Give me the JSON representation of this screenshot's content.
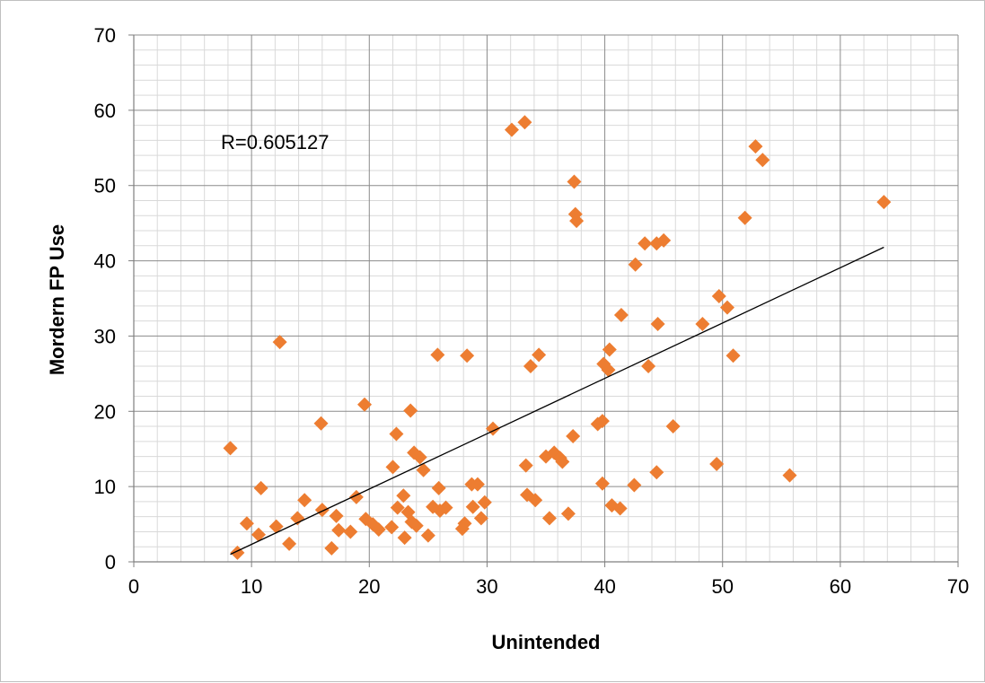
{
  "chart_data": {
    "type": "scatter",
    "title": "",
    "xlabel": "Unintended",
    "ylabel": "Mordern FP Use",
    "xlim": [
      0,
      70
    ],
    "ylim": [
      0,
      70
    ],
    "xticks": [
      "0",
      "10",
      "20",
      "30",
      "40",
      "50",
      "60",
      "70"
    ],
    "yticks": [
      "0",
      "10",
      "20",
      "30",
      "40",
      "50",
      "60",
      "70"
    ],
    "grid": true,
    "legend": "none",
    "annotation": "R=0.605127",
    "marker_color": "#ED7D31",
    "trendline": {
      "x": [
        8.2,
        63.7
      ],
      "y": [
        1.0,
        41.8
      ],
      "color": "#000000"
    },
    "points": [
      {
        "x": 8.2,
        "y": 15.1
      },
      {
        "x": 8.8,
        "y": 1.2
      },
      {
        "x": 9.6,
        "y": 5.1
      },
      {
        "x": 10.6,
        "y": 3.6
      },
      {
        "x": 10.8,
        "y": 9.8
      },
      {
        "x": 12.1,
        "y": 4.7
      },
      {
        "x": 12.4,
        "y": 29.2
      },
      {
        "x": 13.2,
        "y": 2.4
      },
      {
        "x": 13.9,
        "y": 5.8
      },
      {
        "x": 14.5,
        "y": 8.2
      },
      {
        "x": 15.9,
        "y": 18.4
      },
      {
        "x": 16.0,
        "y": 6.9
      },
      {
        "x": 16.8,
        "y": 1.8
      },
      {
        "x": 17.2,
        "y": 6.1
      },
      {
        "x": 17.4,
        "y": 4.2
      },
      {
        "x": 18.4,
        "y": 4.0
      },
      {
        "x": 18.9,
        "y": 8.6
      },
      {
        "x": 19.6,
        "y": 20.9
      },
      {
        "x": 19.7,
        "y": 5.7
      },
      {
        "x": 20.3,
        "y": 5.0
      },
      {
        "x": 20.8,
        "y": 4.3
      },
      {
        "x": 21.9,
        "y": 4.6
      },
      {
        "x": 22.0,
        "y": 12.6
      },
      {
        "x": 22.3,
        "y": 17.0
      },
      {
        "x": 22.4,
        "y": 7.2
      },
      {
        "x": 22.9,
        "y": 8.8
      },
      {
        "x": 23.0,
        "y": 3.2
      },
      {
        "x": 23.3,
        "y": 6.6
      },
      {
        "x": 23.5,
        "y": 20.1
      },
      {
        "x": 23.6,
        "y": 5.3
      },
      {
        "x": 23.8,
        "y": 14.5
      },
      {
        "x": 24.0,
        "y": 4.8
      },
      {
        "x": 24.3,
        "y": 13.9
      },
      {
        "x": 24.6,
        "y": 12.2
      },
      {
        "x": 25.0,
        "y": 3.5
      },
      {
        "x": 25.4,
        "y": 7.3
      },
      {
        "x": 25.8,
        "y": 27.5
      },
      {
        "x": 25.9,
        "y": 9.8
      },
      {
        "x": 26.0,
        "y": 6.8
      },
      {
        "x": 26.5,
        "y": 7.2
      },
      {
        "x": 27.9,
        "y": 4.4
      },
      {
        "x": 28.1,
        "y": 5.1
      },
      {
        "x": 28.3,
        "y": 27.4
      },
      {
        "x": 28.7,
        "y": 10.3
      },
      {
        "x": 28.8,
        "y": 7.3
      },
      {
        "x": 29.2,
        "y": 10.3
      },
      {
        "x": 29.5,
        "y": 5.8
      },
      {
        "x": 29.8,
        "y": 7.9
      },
      {
        "x": 30.5,
        "y": 17.7
      },
      {
        "x": 32.1,
        "y": 57.4
      },
      {
        "x": 33.2,
        "y": 58.4
      },
      {
        "x": 33.3,
        "y": 12.8
      },
      {
        "x": 33.4,
        "y": 8.9
      },
      {
        "x": 33.7,
        "y": 26.0
      },
      {
        "x": 34.1,
        "y": 8.2
      },
      {
        "x": 34.4,
        "y": 27.5
      },
      {
        "x": 35.0,
        "y": 14.0
      },
      {
        "x": 35.3,
        "y": 5.8
      },
      {
        "x": 35.7,
        "y": 14.5
      },
      {
        "x": 36.2,
        "y": 13.8
      },
      {
        "x": 36.4,
        "y": 13.3
      },
      {
        "x": 36.9,
        "y": 6.4
      },
      {
        "x": 37.3,
        "y": 16.7
      },
      {
        "x": 37.4,
        "y": 50.5
      },
      {
        "x": 37.5,
        "y": 46.2
      },
      {
        "x": 37.6,
        "y": 45.3
      },
      {
        "x": 39.4,
        "y": 18.3
      },
      {
        "x": 39.8,
        "y": 18.7
      },
      {
        "x": 39.8,
        "y": 10.4
      },
      {
        "x": 39.9,
        "y": 26.3
      },
      {
        "x": 40.3,
        "y": 25.5
      },
      {
        "x": 40.4,
        "y": 28.2
      },
      {
        "x": 40.6,
        "y": 7.5
      },
      {
        "x": 41.3,
        "y": 7.1
      },
      {
        "x": 41.4,
        "y": 32.8
      },
      {
        "x": 42.5,
        "y": 10.2
      },
      {
        "x": 42.6,
        "y": 39.5
      },
      {
        "x": 43.4,
        "y": 42.3
      },
      {
        "x": 43.7,
        "y": 26.0
      },
      {
        "x": 44.4,
        "y": 11.9
      },
      {
        "x": 44.4,
        "y": 42.3
      },
      {
        "x": 44.5,
        "y": 31.6
      },
      {
        "x": 45.0,
        "y": 42.7
      },
      {
        "x": 45.8,
        "y": 18.0
      },
      {
        "x": 48.3,
        "y": 31.6
      },
      {
        "x": 49.5,
        "y": 13.0
      },
      {
        "x": 49.7,
        "y": 35.3
      },
      {
        "x": 50.4,
        "y": 33.8
      },
      {
        "x": 50.9,
        "y": 27.4
      },
      {
        "x": 51.9,
        "y": 45.7
      },
      {
        "x": 52.8,
        "y": 55.2
      },
      {
        "x": 53.4,
        "y": 53.4
      },
      {
        "x": 55.7,
        "y": 11.5
      },
      {
        "x": 63.7,
        "y": 47.8
      }
    ]
  }
}
